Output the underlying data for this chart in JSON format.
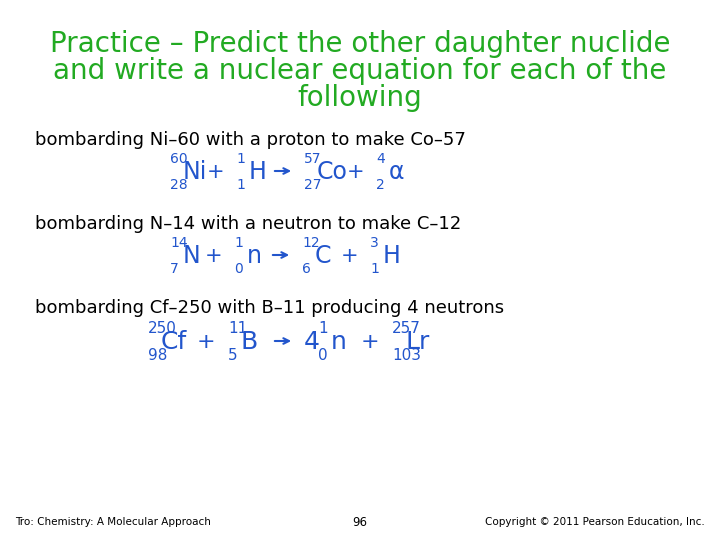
{
  "title_line1": "Practice – Predict the other daughter nuclide",
  "title_line2": "and write a nuclear equation for each of the",
  "title_line3": "following",
  "title_color": "#22aa22",
  "text_color": "#000000",
  "eq_color": "#2255cc",
  "background_color": "#ffffff",
  "footer_left": "Tro: Chemistry: A Molecular Approach",
  "footer_center": "96",
  "footer_right": "Copyright © 2011 Pearson Education, Inc.",
  "line1_text": "bombarding Ni–60 with a proton to make Co–57",
  "line2_text": "bombarding N–14 with a neutron to make C–12",
  "line3_text": "bombarding Cf–250 with B–11 producing 4 neutrons"
}
